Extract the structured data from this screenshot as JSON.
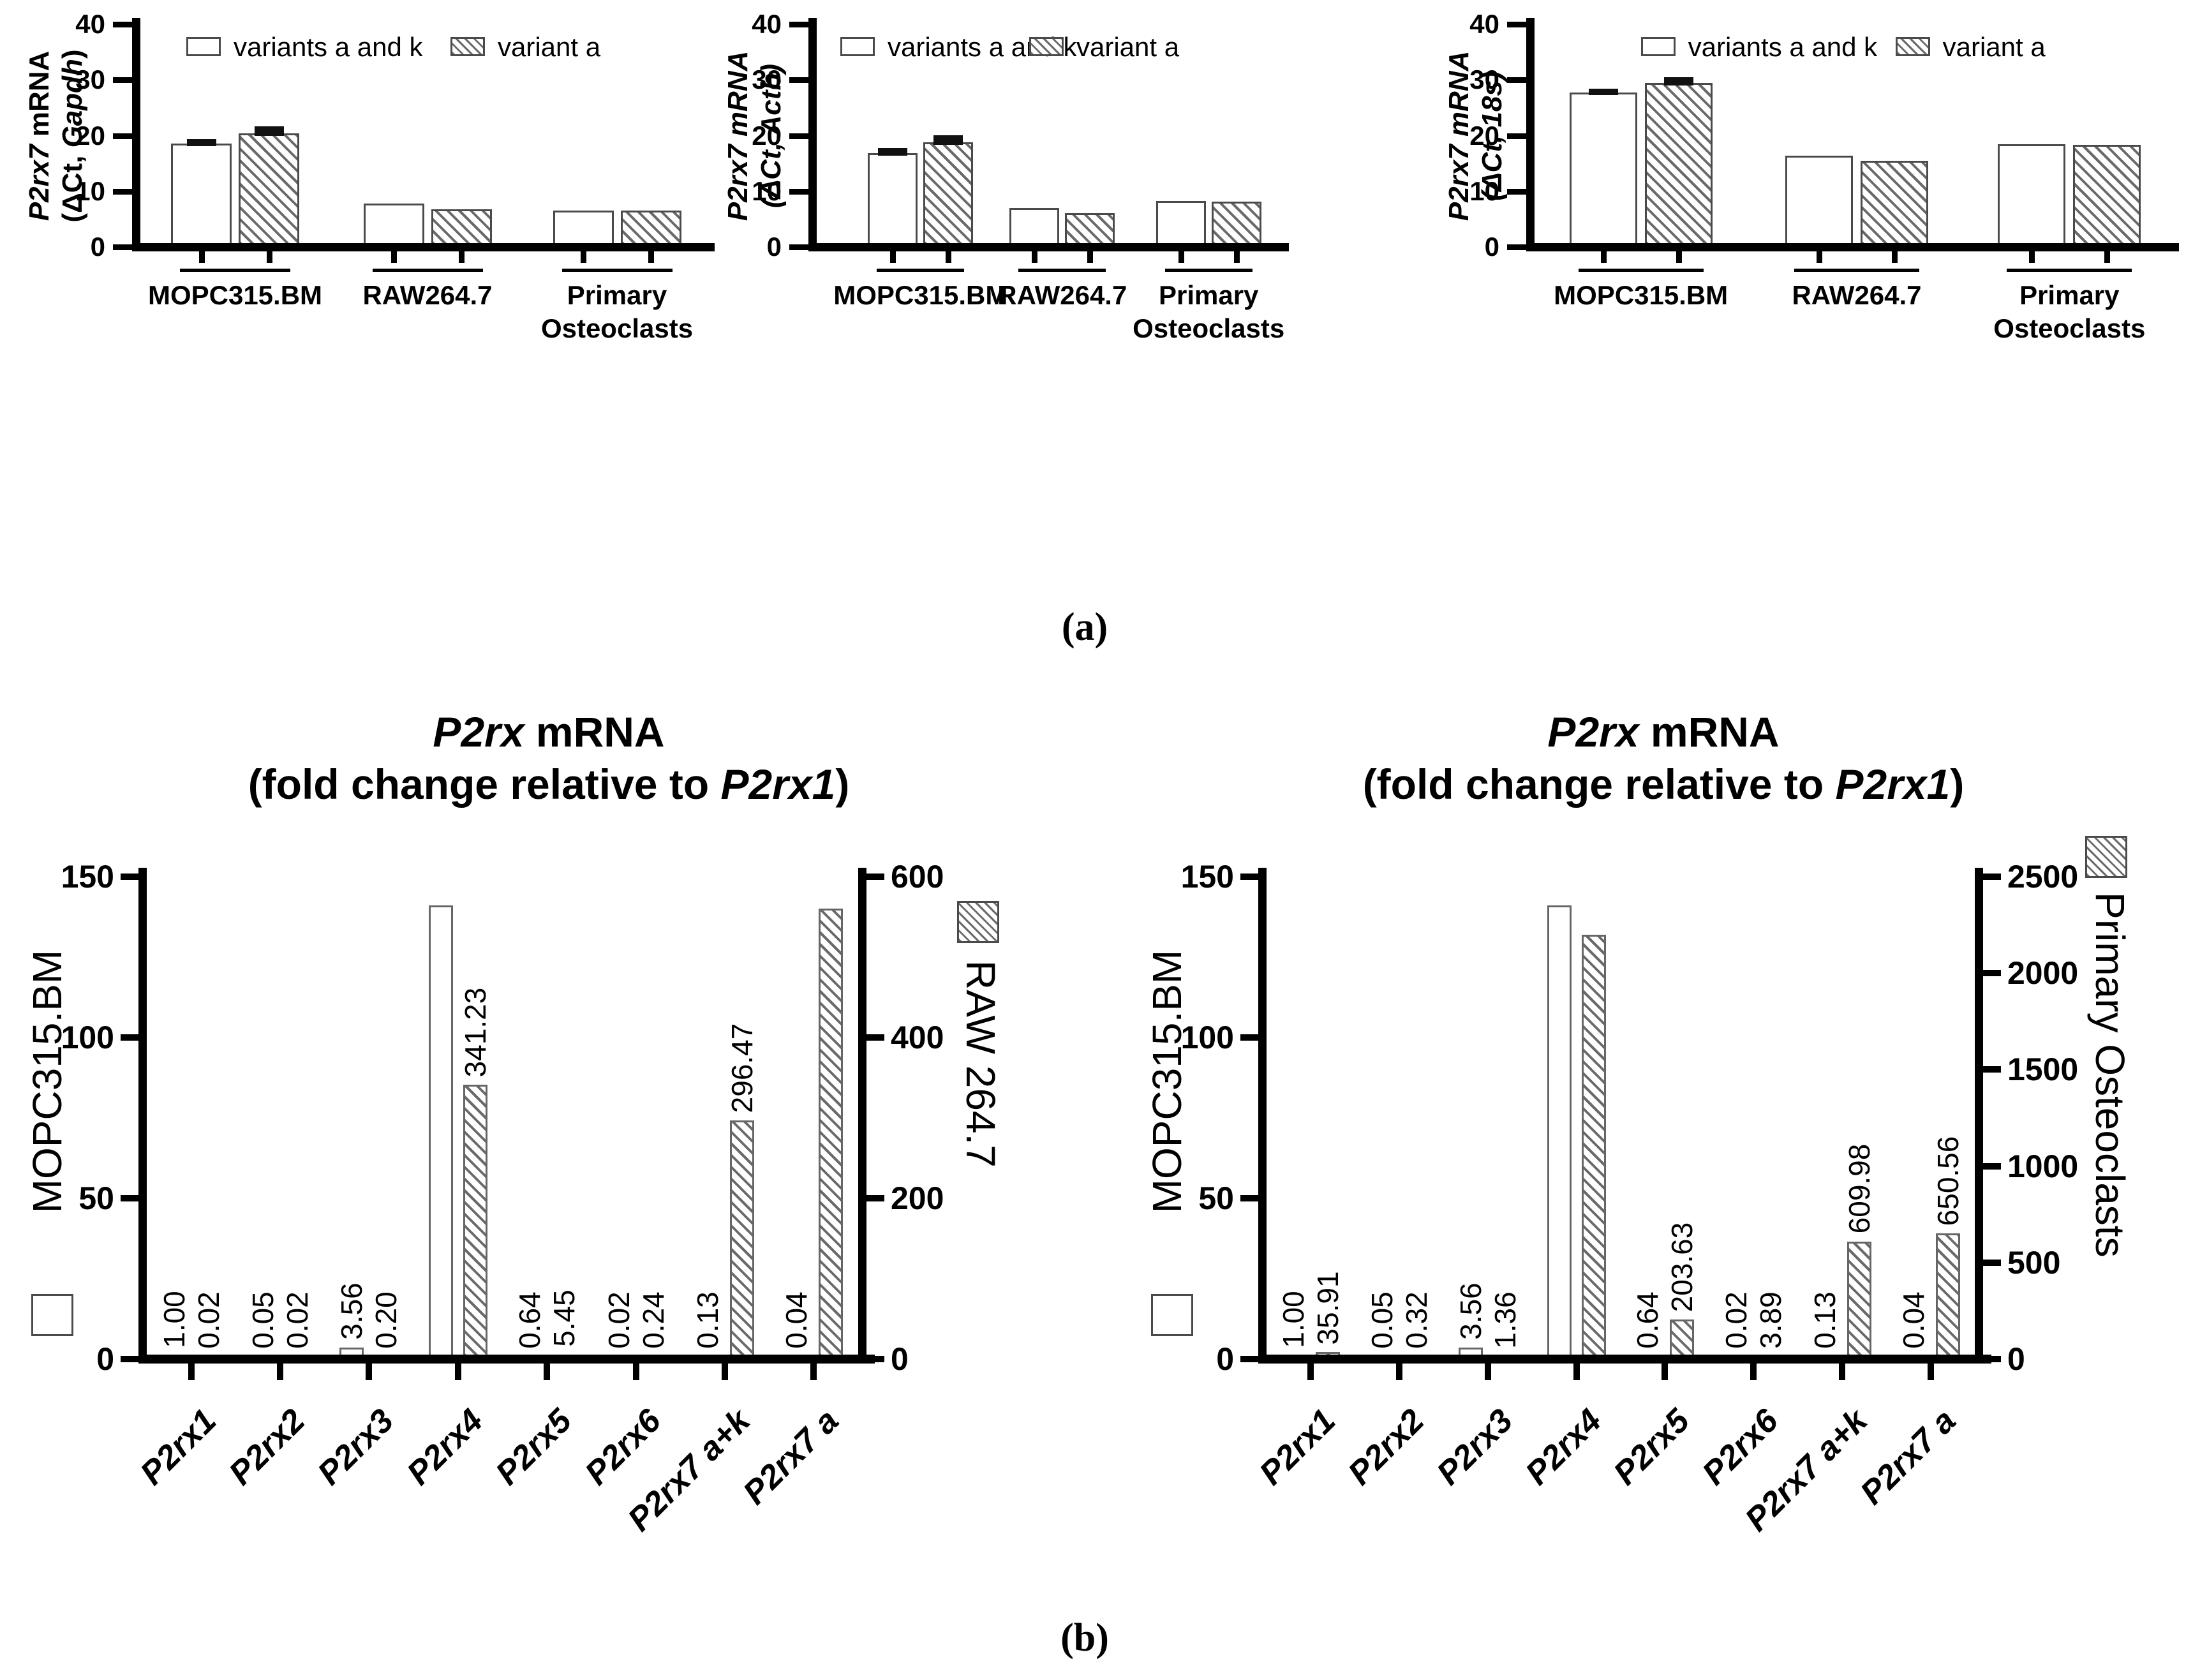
{
  "figure": {
    "panel_a_label": "(a)",
    "panel_b_label": "(b)",
    "background": "#ffffff",
    "ink_color": "#000000",
    "bar_outline_color_panel_a": "#4a4a4a",
    "bar_outline_color_panel_b": "#666666",
    "hatch_color": "#6a6a6a"
  },
  "chart_data": [
    {
      "id": "a_gapdh",
      "type": "bar",
      "panel": "a",
      "ylabel_lines": [
        [
          {
            "t": "P2rx7",
            "i": true
          },
          {
            "t": " mRNA",
            "i": false
          }
        ],
        [
          {
            "t": "(ΔCt, ",
            "i": false
          },
          {
            "t": "Gapdh",
            "i": true
          },
          {
            "t": ")",
            "i": false
          }
        ]
      ],
      "ylim": [
        0,
        40
      ],
      "yticks": [
        0,
        10,
        20,
        30,
        40
      ],
      "categories": [
        [
          "MOPC315.BM"
        ],
        [
          "RAW264.7"
        ],
        [
          "Primary",
          "Osteoclasts"
        ]
      ],
      "grid": false,
      "legend_position": "top-inside",
      "series": [
        {
          "name": "variants a and k",
          "style": "plain",
          "values": [
            18.6,
            7.8,
            6.5
          ],
          "errors": [
            0.3,
            0,
            0
          ]
        },
        {
          "name": "variant a",
          "style": "hatched",
          "values": [
            20.4,
            6.8,
            6.5
          ],
          "errors": [
            0.8,
            0,
            0
          ]
        }
      ]
    },
    {
      "id": "a_actb",
      "type": "bar",
      "panel": "a",
      "ylabel_lines": [
        [
          {
            "t": "P2rx7 mRNA",
            "i": true
          }
        ],
        [
          {
            "t": "(ΔCt, Actb)",
            "i": true
          }
        ]
      ],
      "ylim": [
        0,
        40
      ],
      "yticks": [
        0,
        10,
        20,
        30,
        40
      ],
      "categories": [
        [
          "MOPC315.BM"
        ],
        [
          "RAW264.7"
        ],
        [
          "Primary",
          "Osteoclasts"
        ]
      ],
      "grid": false,
      "legend_position": "top-inside",
      "series": [
        {
          "name": "variants a and k",
          "style": "plain",
          "values": [
            16.9,
            7.0,
            8.2
          ],
          "errors": [
            0.35,
            0,
            0
          ]
        },
        {
          "name": "variant a",
          "style": "hatched",
          "values": [
            18.8,
            6.1,
            8.1
          ],
          "errors": [
            0.85,
            0,
            0
          ]
        }
      ]
    },
    {
      "id": "a_18s",
      "type": "bar",
      "panel": "a",
      "ylabel_lines": [
        [
          {
            "t": "P2rx7 mRNA",
            "i": true
          }
        ],
        [
          {
            "t": "(ΔCt, 18s)",
            "i": true
          }
        ]
      ],
      "ylim": [
        0,
        40
      ],
      "yticks": [
        0,
        10,
        20,
        30,
        40
      ],
      "categories": [
        [
          "MOPC315.BM"
        ],
        [
          "RAW264.7"
        ],
        [
          "Primary",
          "Osteoclasts"
        ]
      ],
      "grid": false,
      "legend_position": "top-inside",
      "series": [
        {
          "name": "variants a and k",
          "style": "plain",
          "values": [
            27.7,
            16.4,
            18.4
          ],
          "errors": [
            0.25,
            0,
            0
          ]
        },
        {
          "name": "variant a",
          "style": "hatched",
          "values": [
            29.4,
            15.5,
            18.3
          ],
          "errors": [
            0.6,
            0,
            0
          ]
        }
      ]
    },
    {
      "id": "b_mopc_raw",
      "type": "bar-dual-axis",
      "panel": "b",
      "title_lines": [
        [
          {
            "t": "P2rx",
            "i": true
          },
          {
            "t": " mRNA",
            "i": false
          }
        ],
        [
          {
            "t": "(fold change relative to ",
            "i": false
          },
          {
            "t": "P2rx1",
            "i": true
          },
          {
            "t": ")",
            "i": false
          }
        ]
      ],
      "categories": [
        "P2rx1",
        "P2rx2",
        "P2rx3",
        "P2rx4",
        "P2rx5",
        "P2rx6",
        "P2rx7 a+k",
        "P2rx7 a"
      ],
      "left_axis": {
        "label": "MOPC315.BM",
        "lim": [
          0,
          150
        ],
        "ticks": [
          0,
          50,
          100,
          150
        ]
      },
      "right_axis": {
        "label": "RAW 264.7",
        "lim": [
          0,
          600
        ],
        "ticks": [
          0,
          200,
          400,
          600
        ]
      },
      "grid": false,
      "series": [
        {
          "name": "MOPC315.BM",
          "axis": "left",
          "style": "plain",
          "values": [
            1.0,
            0.05,
            3.56,
            141,
            0.64,
            0.02,
            0.13,
            0.04
          ],
          "labels": [
            "1.00",
            "0.05",
            "3.56",
            null,
            "0.64",
            "0.02",
            "0.13",
            "0.04"
          ]
        },
        {
          "name": "RAW 264.7",
          "axis": "right",
          "style": "hatched",
          "values": [
            0.02,
            0.02,
            0.2,
            341.23,
            5.45,
            0.24,
            296.47,
            560
          ],
          "labels": [
            "0.02",
            "0.02",
            "0.20",
            "341.23",
            "5.45",
            "0.24",
            "296.47",
            null
          ]
        }
      ]
    },
    {
      "id": "b_mopc_osteoclasts",
      "type": "bar-dual-axis",
      "panel": "b",
      "title_lines": [
        [
          {
            "t": "P2rx",
            "i": true
          },
          {
            "t": " mRNA",
            "i": false
          }
        ],
        [
          {
            "t": "(fold change relative to ",
            "i": false
          },
          {
            "t": "P2rx1",
            "i": true
          },
          {
            "t": ")",
            "i": false
          }
        ]
      ],
      "categories": [
        "P2rx1",
        "P2rx2",
        "P2rx3",
        "P2rx4",
        "P2rx5",
        "P2rx6",
        "P2rx7 a+k",
        "P2rx7 a"
      ],
      "left_axis": {
        "label": "MOPC315.BM",
        "lim": [
          0,
          150
        ],
        "ticks": [
          0,
          50,
          100,
          150
        ]
      },
      "right_axis": {
        "label": "Primary Osteoclasts",
        "lim": [
          0,
          2500
        ],
        "ticks": [
          0,
          500,
          1000,
          1500,
          2000,
          2500
        ]
      },
      "grid": false,
      "series": [
        {
          "name": "MOPC315.BM",
          "axis": "left",
          "style": "plain",
          "values": [
            1.0,
            0.05,
            3.56,
            141,
            0.64,
            0.02,
            0.13,
            0.04
          ],
          "labels": [
            "1.00",
            "0.05",
            "3.56",
            null,
            "0.64",
            "0.02",
            "0.13",
            "0.04"
          ]
        },
        {
          "name": "Primary Osteoclasts",
          "axis": "right",
          "style": "hatched",
          "values": [
            35.91,
            0.32,
            1.36,
            2200,
            203.63,
            3.89,
            609.98,
            650.56
          ],
          "labels": [
            "35.91",
            "0.32",
            "1.36",
            null,
            "203.63",
            "3.89",
            "609.98",
            "650.56"
          ]
        }
      ]
    }
  ]
}
